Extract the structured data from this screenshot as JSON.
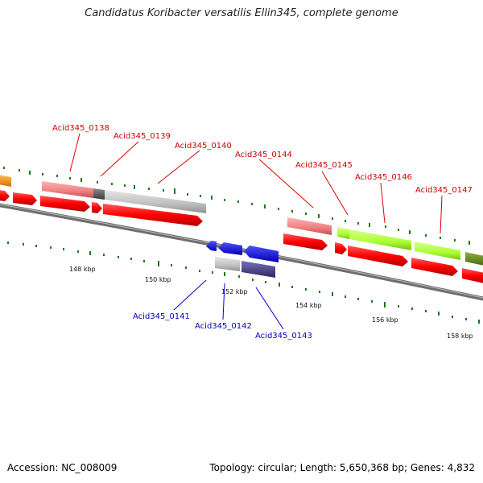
{
  "title": "Candidatus Koribacter versatilis Ellin345, complete genome",
  "footer": {
    "accession": "Accession: NC_008009",
    "topology": "Topology: circular; Length: 5,650,368 bp; Genes: 4,832"
  },
  "kbp_labels": [
    "148 kbp",
    "150 kbp",
    "152 kbp",
    "154 kbp",
    "156 kbp",
    "158 kbp"
  ],
  "genes_forward": [
    "Acid345_0138",
    "Acid345_0139",
    "Acid345_0140",
    "Acid345_0144",
    "Acid345_0145",
    "Acid345_0146",
    "Acid345_0147"
  ],
  "genes_reverse": [
    "Acid345_0141",
    "Acid345_0142",
    "Acid345_0143"
  ],
  "colors": {
    "forward_label": "#cc0000",
    "reverse_label": "#0000bb",
    "backbone": "#808080",
    "tick": "#1a7a1a",
    "cds": "#ff0000",
    "rna_pink": "#f08080",
    "gray_feature": "#c0c0c0",
    "dark_gray_feature": "#606060",
    "lime_feature": "#aaff33",
    "olive_feature": "#6b8e23",
    "orange_feature": "#ff9900",
    "blue_cds": "#0000ee",
    "navy_feature": "#4b3f8f"
  }
}
